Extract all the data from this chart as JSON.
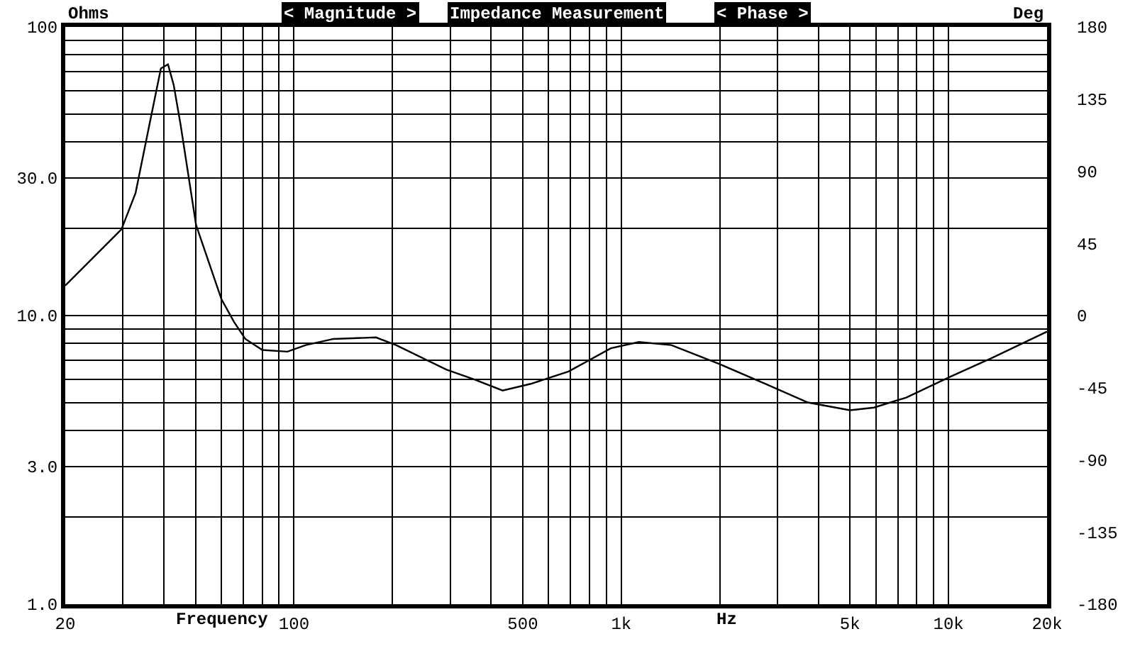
{
  "chart_data": {
    "type": "line",
    "title": "Impedance Measurement",
    "xlabel": "Frequency",
    "ylabel": "Ohms",
    "y2label": "Deg",
    "annotations": [
      "< Magnitude >",
      "< Phase >",
      "Hz"
    ],
    "x": [
      20,
      29.7,
      32.8,
      36.2,
      39.2,
      41.2,
      42.9,
      45,
      50.2,
      60,
      65.6,
      71,
      80,
      95.5,
      108.6,
      132,
      178,
      205,
      292,
      357,
      434,
      529,
      690,
      929,
      1132,
      1422,
      1991,
      2760,
      3715,
      5000,
      5916,
      7430,
      10000,
      13450,
      20000
    ],
    "series": [
      {
        "color": "#000000",
        "values": [
          12.7,
          19.9,
          26.6,
          46.2,
          71.8,
          74.2,
          62.9,
          46,
          20.6,
          11.4,
          9.5,
          8.3,
          7.6,
          7.5,
          7.9,
          8.3,
          8.4,
          7.9,
          6.5,
          6.0,
          5.5,
          5.8,
          6.4,
          7.7,
          8.1,
          7.9,
          6.8,
          5.8,
          5.0,
          4.7,
          4.8,
          5.2,
          6.1,
          7.1,
          8.8
        ]
      }
    ],
    "log": "xy",
    "xlim": [
      20,
      20000
    ],
    "xticks": [
      20,
      {
        "value": 30,
        "label": null
      },
      {
        "value": 40,
        "label": null
      },
      {
        "value": 50,
        "label": null
      },
      {
        "value": 60,
        "label": null
      },
      {
        "value": 70,
        "label": null
      },
      {
        "value": 80,
        "label": null
      },
      {
        "value": 90,
        "label": null
      },
      100,
      {
        "value": 200,
        "label": null
      },
      {
        "value": 300,
        "label": null
      },
      {
        "value": 400,
        "label": null
      },
      500,
      {
        "value": 600,
        "label": null
      },
      {
        "value": 700,
        "label": null
      },
      {
        "value": 800,
        "label": null
      },
      {
        "value": 900,
        "label": null
      },
      {
        "value": 1000,
        "label": "1k"
      },
      {
        "value": 2000,
        "label": null
      },
      {
        "value": 3000,
        "label": null
      },
      {
        "value": 4000,
        "label": null
      },
      {
        "value": 5000,
        "label": "5k"
      },
      {
        "value": 6000,
        "label": null
      },
      {
        "value": 7000,
        "label": null
      },
      {
        "value": 8000,
        "label": null
      },
      {
        "value": 9000,
        "label": null
      },
      {
        "value": 10000,
        "label": "10k"
      },
      {
        "value": 20000,
        "label": "20k"
      }
    ],
    "ylim": [
      1,
      100
    ],
    "yticks": [
      {
        "value": 1,
        "label": "1.0"
      },
      {
        "value": 2,
        "label": null
      },
      {
        "value": 3,
        "label": "3.0"
      },
      {
        "value": 4,
        "label": null
      },
      {
        "value": 5,
        "label": null
      },
      {
        "value": 6,
        "label": null
      },
      {
        "value": 7,
        "label": null
      },
      {
        "value": 8,
        "label": null
      },
      {
        "value": 9,
        "label": null
      },
      {
        "value": 10,
        "label": "10.0"
      },
      {
        "value": 20,
        "label": null
      },
      {
        "value": 30,
        "label": "30.0"
      },
      {
        "value": 40,
        "label": null
      },
      {
        "value": 50,
        "label": null
      },
      {
        "value": 60,
        "label": null
      },
      {
        "value": 70,
        "label": null
      },
      {
        "value": 80,
        "label": null
      },
      {
        "value": 90,
        "label": null
      },
      100
    ],
    "y2lim": [
      -180,
      180
    ],
    "y2ticks": [
      -180,
      -135,
      -90,
      -45,
      0,
      45,
      90,
      135,
      180
    ],
    "grid": true,
    "marker": "none",
    "line_style": "solid"
  }
}
